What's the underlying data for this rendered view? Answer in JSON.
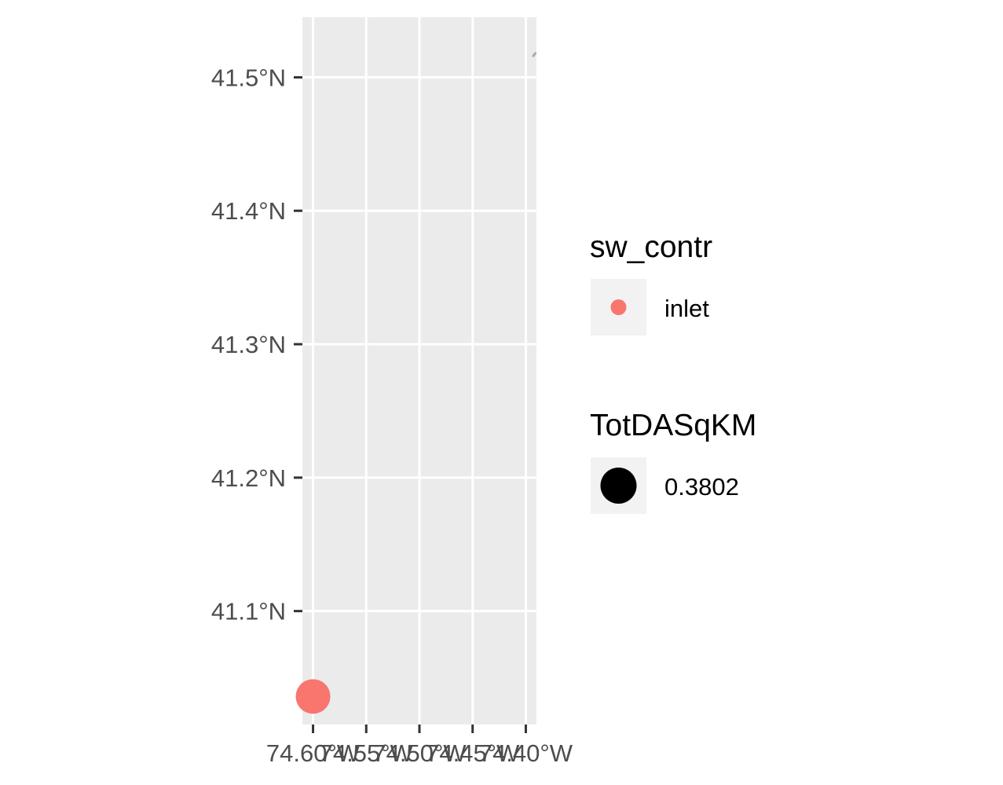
{
  "chart_data": {
    "type": "scatter",
    "x_axis": {
      "range": [
        -74.61,
        -74.39
      ],
      "ticks": [
        -74.6,
        -74.55,
        -74.5,
        -74.45,
        -74.4
      ],
      "tick_labels": [
        "74.60°W",
        "74.55°W",
        "74.50°W",
        "74.45°W",
        "74.40°W"
      ]
    },
    "y_axis": {
      "range": [
        41.015,
        41.545
      ],
      "ticks": [
        41.1,
        41.2,
        41.3,
        41.4,
        41.5
      ],
      "tick_labels": [
        "41.1°N",
        "41.2°N",
        "41.3°N",
        "41.4°N",
        "41.5°N"
      ]
    },
    "grid": true,
    "background": "#ebebeb",
    "points": [
      {
        "lon": -74.6,
        "lat": 41.036,
        "sw_contr": "inlet",
        "TotDASqKM": 0.3802,
        "color": "#f8766d"
      }
    ],
    "line_segment": {
      "from": [
        -74.393,
        41.516
      ],
      "to": [
        -74.391,
        41.518
      ],
      "color": "#aaaaaa"
    },
    "legend": {
      "placement": "right",
      "color_legend": {
        "title": "sw_contr",
        "entries": [
          {
            "label": "inlet",
            "color": "#f8766d"
          }
        ]
      },
      "size_legend": {
        "title": "TotDASqKM",
        "entries": [
          {
            "label": "0.3802",
            "color": "#000000"
          }
        ]
      }
    }
  }
}
